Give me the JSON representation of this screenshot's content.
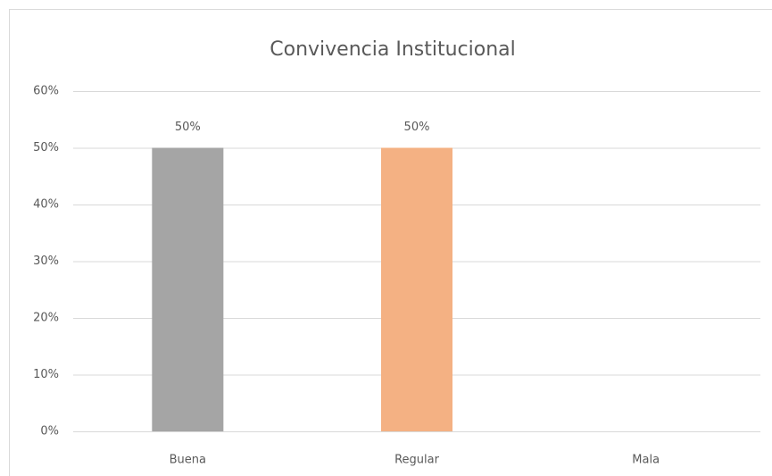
{
  "chart_data": {
    "type": "bar",
    "title": "Convivencia Institucional",
    "categories": [
      "Buena",
      "Regular",
      "Mala"
    ],
    "values": [
      50,
      50,
      0
    ],
    "value_labels": [
      "50%",
      "50%",
      null
    ],
    "colors": [
      "#a5a5a5",
      "#f4b183",
      "#ffc000"
    ],
    "ylim": [
      0,
      60
    ],
    "yticks": [
      {
        "value": 0,
        "label": "0%"
      },
      {
        "value": 10,
        "label": "10%"
      },
      {
        "value": 20,
        "label": "20%"
      },
      {
        "value": 30,
        "label": "30%"
      },
      {
        "value": 40,
        "label": "40%"
      },
      {
        "value": 50,
        "label": "50%"
      },
      {
        "value": 60,
        "label": "60%"
      }
    ],
    "grid": true
  }
}
